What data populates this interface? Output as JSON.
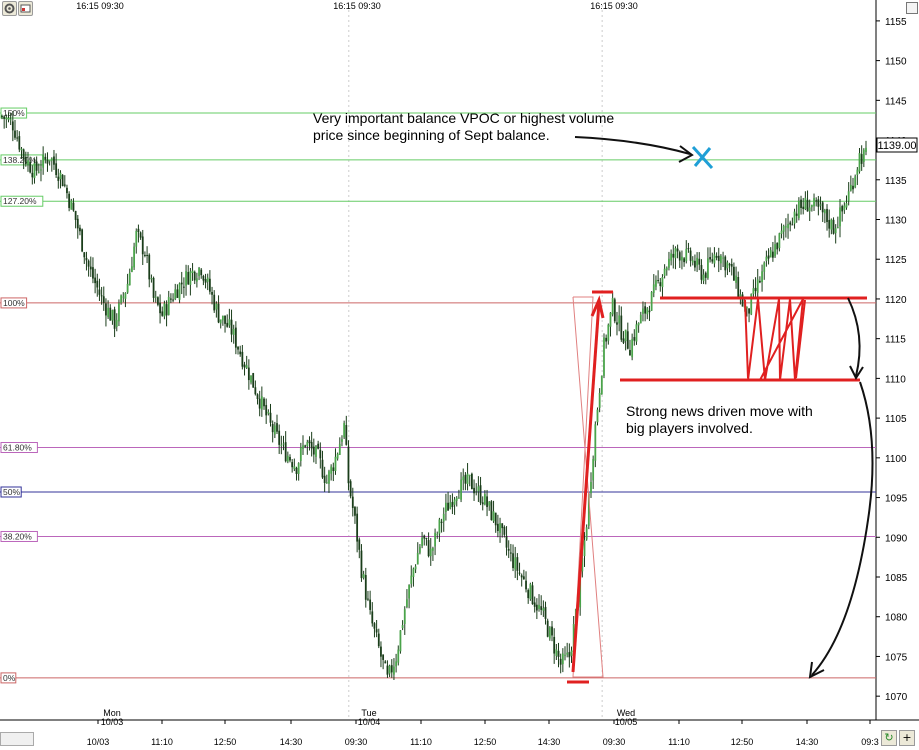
{
  "toolbar": {
    "settings_icon": "gear-icon",
    "chart_icon": "chart-properties-icon"
  },
  "chart_data": {
    "type": "candlestick",
    "title": "",
    "xlabel": "",
    "ylabel": "",
    "ylim": [
      1067,
      1157
    ],
    "y_ticks": [
      1070,
      1075,
      1080,
      1085,
      1090,
      1095,
      1100,
      1105,
      1110,
      1115,
      1120,
      1125,
      1130,
      1135,
      1140,
      1145,
      1150,
      1155
    ],
    "last_price": "1139.00",
    "session_labels": [
      {
        "text": "16:15  09:30",
        "x": "Mon 10/03 16:15"
      },
      {
        "text": "16:15  09:30",
        "x": "Tue 10/04 16:15"
      },
      {
        "text": "16:15  09:30",
        "x": "Wed 10/05 16:15"
      }
    ],
    "day_labels": [
      {
        "day": "Mon",
        "date": "10/03"
      },
      {
        "day": "Tue",
        "date": "10/04"
      },
      {
        "day": "Wed",
        "date": "10/05"
      }
    ],
    "x_ticks": [
      "10/03",
      "11:10",
      "12:50",
      "14:30",
      "09:30",
      "11:10",
      "12:50",
      "14:30",
      "09:30",
      "11:10",
      "12:50",
      "14:30",
      "09:3"
    ],
    "fib_levels": [
      {
        "label": "150%",
        "value": 1143.4,
        "color": "#66cc66"
      },
      {
        "label": "138.20%",
        "value": 1137.5,
        "color": "#66cc66"
      },
      {
        "label": "127.20%",
        "value": 1132.3,
        "color": "#66cc66"
      },
      {
        "label": "100%",
        "value": 1119.5,
        "color": "#cc6666"
      },
      {
        "label": "61.80%",
        "value": 1101.3,
        "color": "#bb66bb"
      },
      {
        "label": "50%",
        "value": 1095.7,
        "color": "#333399"
      },
      {
        "label": "38.20%",
        "value": 1090.1,
        "color": "#bb66bb"
      },
      {
        "label": "0%",
        "value": 1072.3,
        "color": "#cc6666"
      }
    ],
    "close_path": [
      [
        0,
        1143
      ],
      [
        5,
        1142
      ],
      [
        10,
        1138
      ],
      [
        15,
        1136
      ],
      [
        22,
        1138
      ],
      [
        28,
        1135
      ],
      [
        34,
        1130
      ],
      [
        40,
        1124
      ],
      [
        46,
        1120
      ],
      [
        52,
        1117
      ],
      [
        58,
        1122
      ],
      [
        62,
        1128
      ],
      [
        66,
        1126
      ],
      [
        70,
        1120
      ],
      [
        74,
        1118
      ],
      [
        80,
        1121
      ],
      [
        86,
        1123
      ],
      [
        92,
        1124
      ],
      [
        96,
        1121
      ],
      [
        100,
        1118
      ],
      [
        106,
        1116
      ],
      [
        112,
        1112
      ],
      [
        118,
        1108
      ],
      [
        124,
        1104
      ],
      [
        130,
        1101
      ],
      [
        136,
        1099
      ],
      [
        140,
        1102
      ],
      [
        146,
        1100
      ],
      [
        150,
        1097
      ],
      [
        154,
        1100
      ],
      [
        158,
        1104
      ],
      [
        160,
        1097
      ],
      [
        163,
        1092
      ],
      [
        166,
        1086
      ],
      [
        170,
        1080
      ],
      [
        174,
        1076
      ],
      [
        178,
        1072
      ],
      [
        182,
        1075
      ],
      [
        186,
        1081
      ],
      [
        190,
        1086
      ],
      [
        194,
        1090
      ],
      [
        198,
        1088
      ],
      [
        204,
        1093
      ],
      [
        210,
        1096
      ],
      [
        216,
        1097
      ],
      [
        222,
        1095
      ],
      [
        228,
        1092
      ],
      [
        234,
        1088
      ],
      [
        240,
        1085
      ],
      [
        246,
        1082
      ],
      [
        250,
        1080
      ],
      [
        254,
        1077
      ],
      [
        258,
        1074
      ],
      [
        262,
        1075
      ],
      [
        266,
        1082
      ],
      [
        270,
        1092
      ],
      [
        274,
        1104
      ],
      [
        278,
        1114
      ],
      [
        282,
        1119
      ],
      [
        286,
        1116
      ],
      [
        290,
        1114
      ],
      [
        294,
        1117
      ],
      [
        300,
        1120
      ],
      [
        306,
        1124
      ],
      [
        312,
        1126
      ],
      [
        318,
        1125
      ],
      [
        324,
        1123
      ],
      [
        330,
        1126
      ],
      [
        336,
        1124
      ],
      [
        340,
        1121
      ],
      [
        344,
        1118
      ],
      [
        348,
        1121
      ],
      [
        354,
        1125
      ],
      [
        360,
        1128
      ],
      [
        366,
        1131
      ],
      [
        372,
        1132
      ],
      [
        378,
        1131
      ],
      [
        384,
        1129
      ],
      [
        388,
        1131
      ],
      [
        392,
        1134
      ],
      [
        396,
        1138
      ],
      [
        399,
        1138
      ]
    ],
    "annotations": [
      {
        "text": "Very important balance VPOC or highest volume\nprice since beginning of Sept balance."
      },
      {
        "text": "Strong news driven move with\nbig players involved."
      }
    ]
  }
}
